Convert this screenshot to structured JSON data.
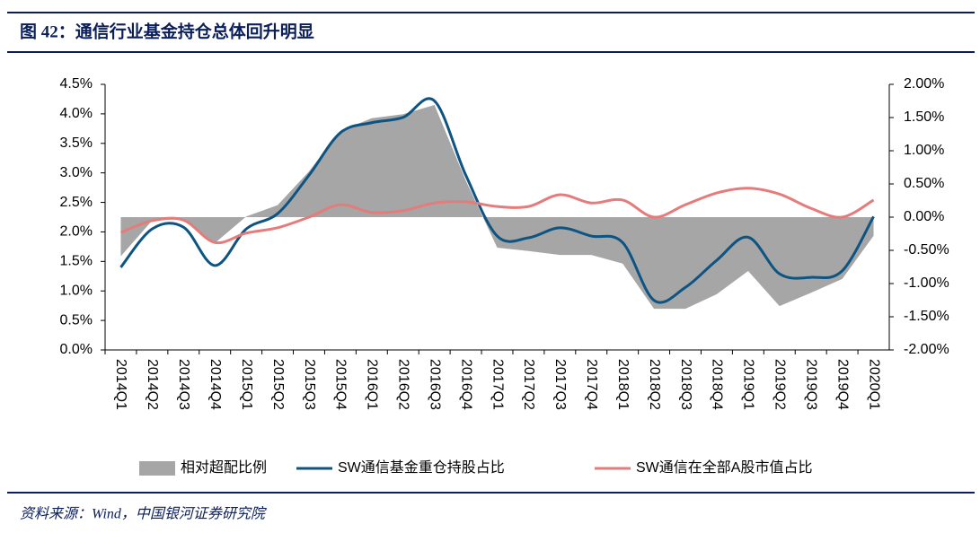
{
  "chart_data": {
    "type": "combo",
    "title": "图 42：通信行业基金持仓总体回升明显",
    "source": "资料来源：Wind，中国银河证券研究院",
    "categories": [
      "2014Q1",
      "2014Q2",
      "2014Q3",
      "2014Q4",
      "2015Q1",
      "2015Q2",
      "2015Q3",
      "2015Q4",
      "2016Q1",
      "2016Q2",
      "2016Q3",
      "2016Q4",
      "2017Q1",
      "2017Q2",
      "2017Q3",
      "2017Q4",
      "2018Q1",
      "2018Q2",
      "2018Q3",
      "2018Q4",
      "2019Q1",
      "2019Q2",
      "2019Q3",
      "2019Q4",
      "2020Q1"
    ],
    "series": [
      {
        "name": "相对超配比例",
        "type": "area",
        "axis": "y2",
        "color": "#a6a6a6",
        "values": [
          -0.59,
          -0.05,
          -0.03,
          -0.39,
          0.01,
          0.18,
          0.69,
          1.3,
          1.49,
          1.55,
          1.69,
          0.55,
          -0.46,
          -0.51,
          -0.57,
          -0.57,
          -0.7,
          -1.38,
          -1.38,
          -1.16,
          -0.81,
          -1.34,
          -1.14,
          -0.93,
          -0.28
        ]
      },
      {
        "name": "SW通信基金重仓持股占比",
        "type": "line",
        "color": "#0e5483",
        "values": [
          1.4,
          2.05,
          2.08,
          1.43,
          2.05,
          2.31,
          2.96,
          3.68,
          3.85,
          3.94,
          4.22,
          2.96,
          1.93,
          1.9,
          2.07,
          1.93,
          1.82,
          0.84,
          1.06,
          1.52,
          1.91,
          1.29,
          1.23,
          1.34,
          2.26
        ]
      },
      {
        "name": "SW通信在全部A股市值占比",
        "type": "line",
        "color": "#e57b7b",
        "values": [
          1.99,
          2.19,
          2.2,
          1.82,
          1.98,
          2.07,
          2.25,
          2.46,
          2.33,
          2.36,
          2.49,
          2.51,
          2.43,
          2.43,
          2.63,
          2.49,
          2.54,
          2.25,
          2.46,
          2.66,
          2.74,
          2.64,
          2.4,
          2.25,
          2.54
        ]
      }
    ],
    "ylim": [
      0,
      4.5
    ],
    "yticks": [
      {
        "value": 0,
        "label": "0.0%"
      },
      {
        "value": 0.5,
        "label": "0.5%"
      },
      {
        "value": 1,
        "label": "1.0%"
      },
      {
        "value": 1.5,
        "label": "1.5%"
      },
      {
        "value": 2,
        "label": "2.0%"
      },
      {
        "value": 2.5,
        "label": "2.5%"
      },
      {
        "value": 3,
        "label": "3.0%"
      },
      {
        "value": 3.5,
        "label": "3.5%"
      },
      {
        "value": 4,
        "label": "4.0%"
      },
      {
        "value": 4.5,
        "label": "4.5%"
      }
    ],
    "y2lim": [
      -2,
      2
    ],
    "y2ticks": [
      {
        "value": -2,
        "label": "-2.00%"
      },
      {
        "value": -1.5,
        "label": "-1.50%"
      },
      {
        "value": -1,
        "label": "-1.00%"
      },
      {
        "value": -0.5,
        "label": "-0.50%"
      },
      {
        "value": 0,
        "label": "0.00%"
      },
      {
        "value": 0.5,
        "label": "0.50%"
      },
      {
        "value": 1,
        "label": "1.00%"
      },
      {
        "value": 1.5,
        "label": "1.50%"
      },
      {
        "value": 2,
        "label": "2.00%"
      }
    ]
  }
}
